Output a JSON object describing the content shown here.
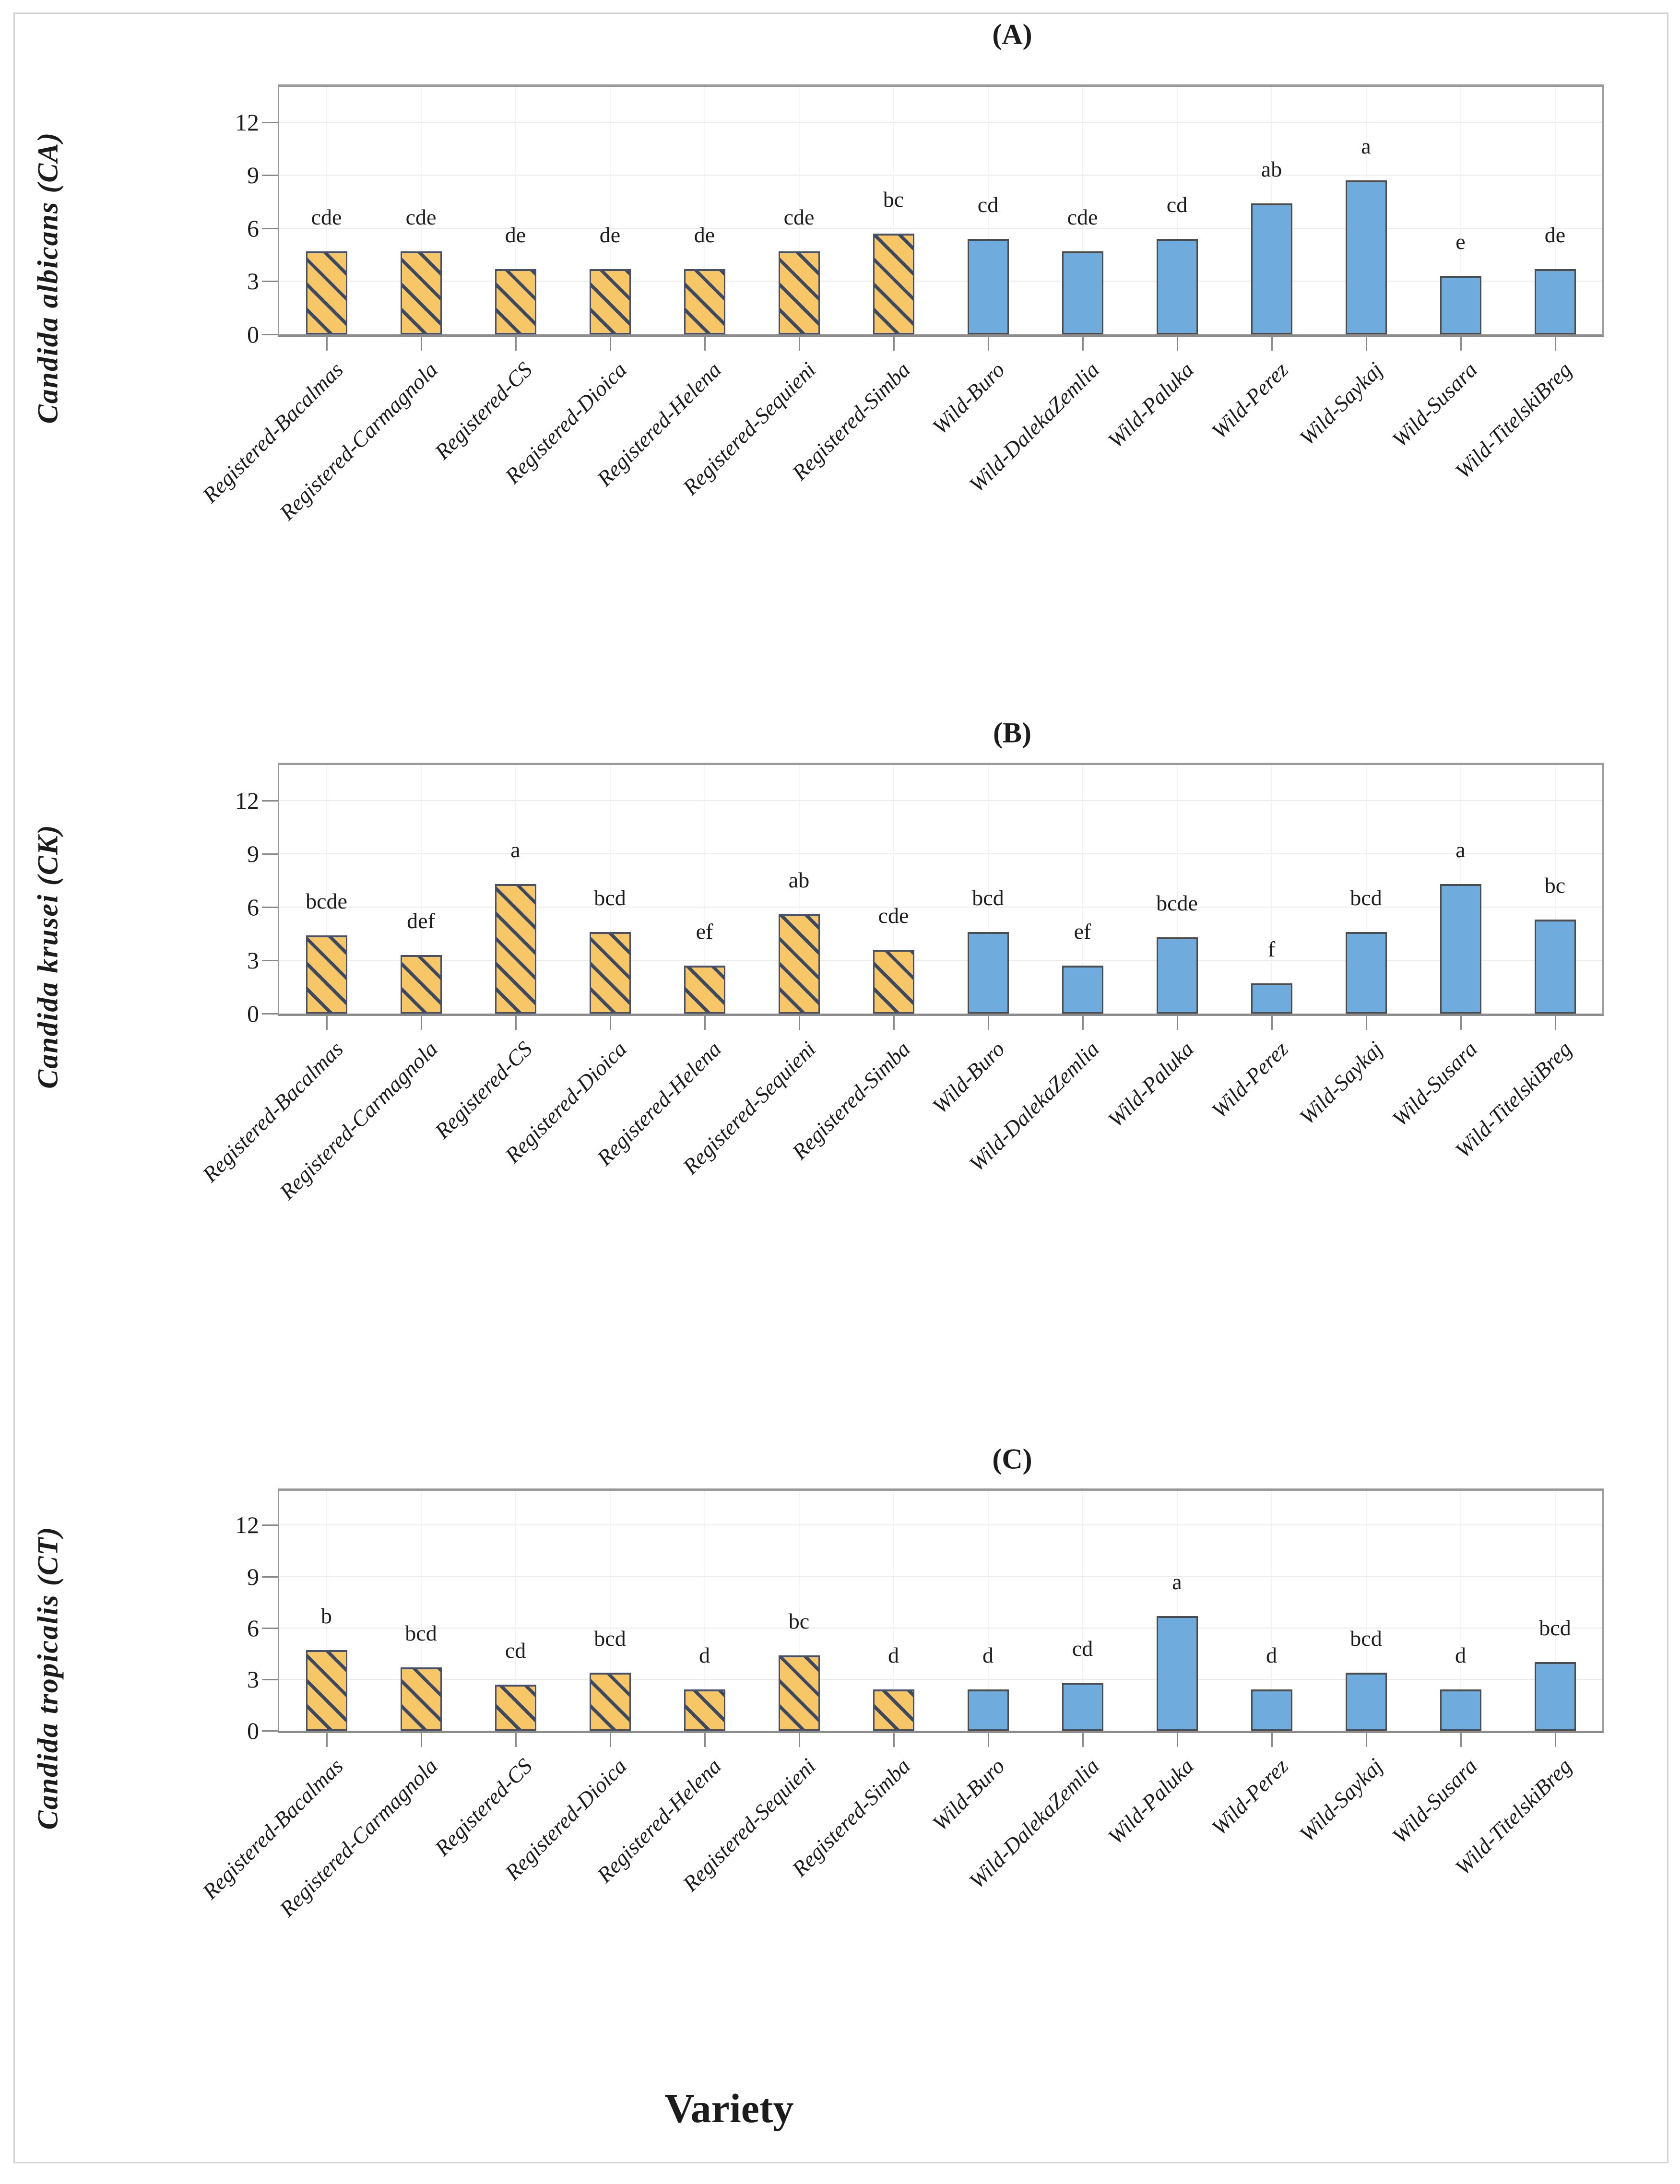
{
  "x_axis_title": "Variety",
  "categories": [
    "Registered-Bacalmas",
    "Registered-Carmagnola",
    "Registered-CS",
    "Registered-Dioica",
    "Registered-Helena",
    "Registered-Sequieni",
    "Registered-Simba",
    "Wild-Buro",
    "Wild-DalekaZemlia",
    "Wild-Paluka",
    "Wild-Perez",
    "Wild-Saykaj",
    "Wild-Susara",
    "Wild-TitelskiBreg"
  ],
  "groups": [
    "registered",
    "registered",
    "registered",
    "registered",
    "registered",
    "registered",
    "registered",
    "wild",
    "wild",
    "wild",
    "wild",
    "wild",
    "wild",
    "wild"
  ],
  "y_tick_labels": [
    "0",
    "3",
    "6",
    "9",
    "12"
  ],
  "colors": {
    "registered_fill": "#F6C667",
    "registered_hatch": "#3D4961",
    "registered_border": "#46506A",
    "wild_fill": "#6FABDC",
    "wild_border": "#4C4C4C",
    "frame": "#9A9A9A",
    "gridline": "#EBEBEB",
    "text": "#1C1C1C"
  },
  "chart_data": [
    {
      "type": "bar",
      "panel_label": "(A)",
      "title": "(A)",
      "xlabel": "",
      "ylabel": "Candida albicans (CA)",
      "categories": [
        "Registered-Bacalmas",
        "Registered-Carmagnola",
        "Registered-CS",
        "Registered-Dioica",
        "Registered-Helena",
        "Registered-Sequieni",
        "Registered-Simba",
        "Wild-Buro",
        "Wild-DalekaZemlia",
        "Wild-Paluka",
        "Wild-Perez",
        "Wild-Saykaj",
        "Wild-Susara",
        "Wild-TitelskiBreg"
      ],
      "values": [
        4.7,
        4.7,
        3.7,
        3.7,
        3.7,
        4.7,
        5.7,
        5.4,
        4.7,
        5.4,
        7.4,
        8.7,
        3.3,
        3.7
      ],
      "letters": [
        "cde",
        "cde",
        "de",
        "de",
        "de",
        "cde",
        "bc",
        "cd",
        "cde",
        "cd",
        "ab",
        "a",
        "e",
        "de"
      ],
      "ylim": [
        0,
        14
      ],
      "yticks": [
        0,
        3,
        6,
        9,
        12
      ],
      "grid": true,
      "legend_position": "none"
    },
    {
      "type": "bar",
      "panel_label": "(B)",
      "title": "(B)",
      "xlabel": "",
      "ylabel": "Candida krusei (CK)",
      "categories": [
        "Registered-Bacalmas",
        "Registered-Carmagnola",
        "Registered-CS",
        "Registered-Dioica",
        "Registered-Helena",
        "Registered-Sequieni",
        "Registered-Simba",
        "Wild-Buro",
        "Wild-DalekaZemlia",
        "Wild-Paluka",
        "Wild-Perez",
        "Wild-Saykaj",
        "Wild-Susara",
        "Wild-TitelskiBreg"
      ],
      "values": [
        4.4,
        3.3,
        7.3,
        4.6,
        2.7,
        5.6,
        3.6,
        4.6,
        2.7,
        4.3,
        1.7,
        4.6,
        7.3,
        5.3
      ],
      "letters": [
        "bcde",
        "def",
        "a",
        "bcd",
        "ef",
        "ab",
        "cde",
        "bcd",
        "ef",
        "bcde",
        "f",
        "bcd",
        "a",
        "bc"
      ],
      "ylim": [
        0,
        14
      ],
      "yticks": [
        0,
        3,
        6,
        9,
        12
      ],
      "grid": true,
      "legend_position": "none"
    },
    {
      "type": "bar",
      "panel_label": "(C)",
      "title": "(C)",
      "xlabel": "Variety",
      "ylabel": "Candida tropicalis (CT)",
      "categories": [
        "Registered-Bacalmas",
        "Registered-Carmagnola",
        "Registered-CS",
        "Registered-Dioica",
        "Registered-Helena",
        "Registered-Sequieni",
        "Registered-Simba",
        "Wild-Buro",
        "Wild-DalekaZemlia",
        "Wild-Paluka",
        "Wild-Perez",
        "Wild-Saykaj",
        "Wild-Susara",
        "Wild-TitelskiBreg"
      ],
      "values": [
        4.7,
        3.7,
        2.7,
        3.4,
        2.4,
        4.4,
        2.4,
        2.4,
        2.8,
        6.7,
        2.4,
        3.4,
        2.4,
        4.0
      ],
      "letters": [
        "b",
        "bcd",
        "cd",
        "bcd",
        "d",
        "bc",
        "d",
        "d",
        "cd",
        "a",
        "d",
        "bcd",
        "d",
        "bcd"
      ],
      "ylim": [
        0,
        14
      ],
      "yticks": [
        0,
        3,
        6,
        9,
        12
      ],
      "grid": true,
      "legend_position": "none"
    }
  ]
}
